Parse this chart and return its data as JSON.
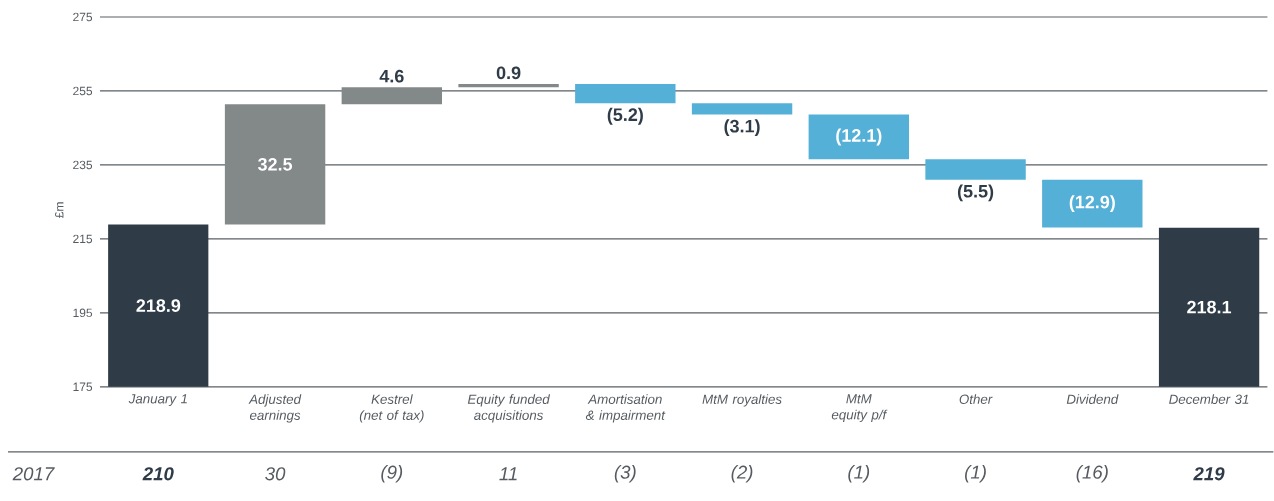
{
  "chart_data": {
    "type": "bar",
    "categories": [
      "January 1",
      "Adjusted earnings",
      "Kestrel (net of tax)",
      "Equity funded acquisitions",
      "Amortisation & impairment",
      "MtM royalties",
      "MtM equity p/f",
      "Other",
      "Dividend",
      "December 31"
    ],
    "values": [
      218.9,
      32.5,
      4.6,
      0.9,
      -5.2,
      -3.1,
      -12.1,
      -5.5,
      -12.9,
      218.1
    ],
    "base": [
      0,
      218.9,
      251.4,
      256.0,
      256.9,
      251.7,
      248.6,
      236.5,
      231.0,
      0
    ],
    "colors": [
      "#2f3c48",
      "#838889",
      "#838889",
      "#838889",
      "#55b0d7",
      "#55b0d7",
      "#55b0d7",
      "#55b0d7",
      "#55b0d7",
      "#2f3c48"
    ],
    "value_labels": [
      "218.9",
      "32.5",
      "4.6",
      "0.9",
      "(5.2)",
      "(3.1)",
      "(12.1)",
      "(5.5)",
      "(12.9)",
      "218.1"
    ],
    "ylabel": "£m",
    "ylim": [
      175,
      275
    ],
    "yticks": [
      175,
      195,
      215,
      235,
      255,
      275
    ],
    "grid": "y",
    "annotations": [
      "2017",
      "210",
      "30",
      "(9)",
      "11",
      "(3)",
      "(2)",
      "(1)",
      "(1)",
      "(16)",
      "219"
    ]
  }
}
